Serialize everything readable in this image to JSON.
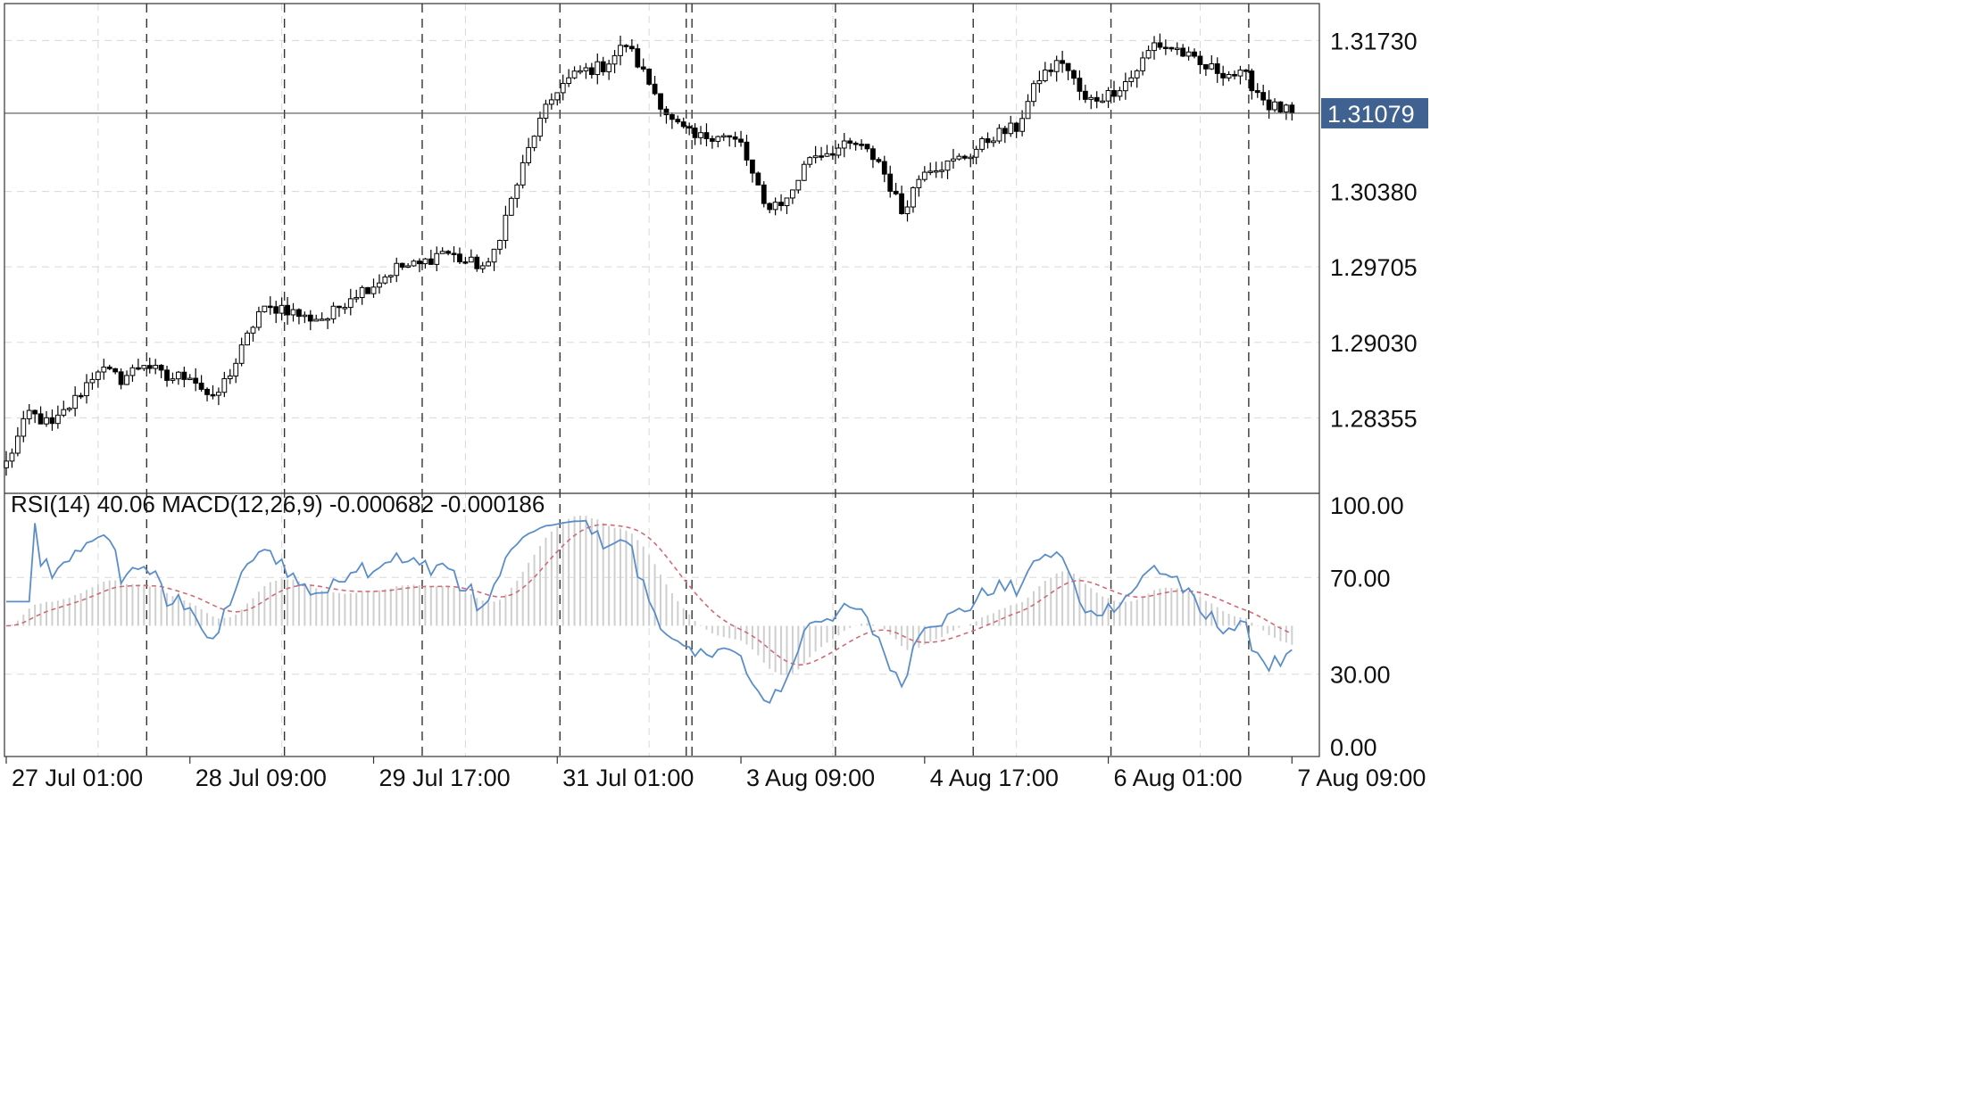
{
  "chart_data": {
    "type": "candlestick",
    "price_axis": {
      "min": 1.2768,
      "max": 1.3206,
      "ticks": [
        "1.31730",
        "1.30380",
        "1.29705",
        "1.29030",
        "1.28355"
      ],
      "tick_values": [
        1.3173,
        1.3038,
        1.29705,
        1.2903,
        1.28355
      ],
      "current_price": "1.31079",
      "current_value": 1.31079
    },
    "time_axis": {
      "labels": [
        "27 Jul 01:00",
        "28 Jul 09:00",
        "29 Jul 17:00",
        "31 Jul 01:00",
        "3 Aug 09:00",
        "4 Aug 17:00",
        "6 Aug 01:00",
        "7 Aug 09:00"
      ],
      "label_bar_index": [
        0,
        32,
        64,
        96,
        128,
        160,
        192,
        224
      ],
      "bar_count": 225
    },
    "anchors": [
      [
        0,
        1.2795
      ],
      [
        4,
        1.284
      ],
      [
        8,
        1.2828
      ],
      [
        12,
        1.2852
      ],
      [
        16,
        1.288
      ],
      [
        20,
        1.287
      ],
      [
        24,
        1.2885
      ],
      [
        28,
        1.287
      ],
      [
        32,
        1.2875
      ],
      [
        36,
        1.285
      ],
      [
        40,
        1.2885
      ],
      [
        44,
        1.293
      ],
      [
        48,
        1.2935
      ],
      [
        52,
        1.2925
      ],
      [
        56,
        1.2925
      ],
      [
        60,
        1.2945
      ],
      [
        64,
        1.2955
      ],
      [
        68,
        1.297
      ],
      [
        72,
        1.2972
      ],
      [
        76,
        1.2985
      ],
      [
        80,
        1.2975
      ],
      [
        84,
        1.297
      ],
      [
        88,
        1.303
      ],
      [
        92,
        1.309
      ],
      [
        96,
        1.313
      ],
      [
        100,
        1.3145
      ],
      [
        104,
        1.315
      ],
      [
        108,
        1.317
      ],
      [
        112,
        1.3135
      ],
      [
        116,
        1.31
      ],
      [
        120,
        1.3085
      ],
      [
        124,
        1.309
      ],
      [
        128,
        1.308
      ],
      [
        132,
        1.3025
      ],
      [
        136,
        1.303
      ],
      [
        140,
        1.307
      ],
      [
        144,
        1.3075
      ],
      [
        148,
        1.308
      ],
      [
        152,
        1.3065
      ],
      [
        156,
        1.302
      ],
      [
        160,
        1.306
      ],
      [
        164,
        1.3062
      ],
      [
        168,
        1.3072
      ],
      [
        172,
        1.3088
      ],
      [
        176,
        1.3095
      ],
      [
        180,
        1.314
      ],
      [
        184,
        1.3155
      ],
      [
        188,
        1.3118
      ],
      [
        192,
        1.3125
      ],
      [
        196,
        1.314
      ],
      [
        200,
        1.317
      ],
      [
        204,
        1.3165
      ],
      [
        208,
        1.315
      ],
      [
        212,
        1.3145
      ],
      [
        216,
        1.314
      ],
      [
        220,
        1.3115
      ],
      [
        224,
        1.3108
      ]
    ],
    "indicator_pane": {
      "label": "RSI(14) 40.06 MACD(12,26,9) -0.000682 -0.000186",
      "ticks": [
        "100.00",
        "70.00",
        "30.00",
        "0.00"
      ],
      "tick_values": [
        100,
        70,
        30,
        0
      ],
      "rsi_last": 40.06,
      "macd_main": -0.000682,
      "macd_signal": -0.000186,
      "rsi_color": "#5b8ec9",
      "signal_color": "#d06a78",
      "histogram_color": "#cfcfcf"
    },
    "colors": {
      "bull_body": "#ffffff",
      "bear_body": "#000000",
      "wick": "#000000",
      "grid": "#d8d8d8",
      "session_separator": "#333333",
      "price_tag_bg": "#3f6291"
    }
  }
}
